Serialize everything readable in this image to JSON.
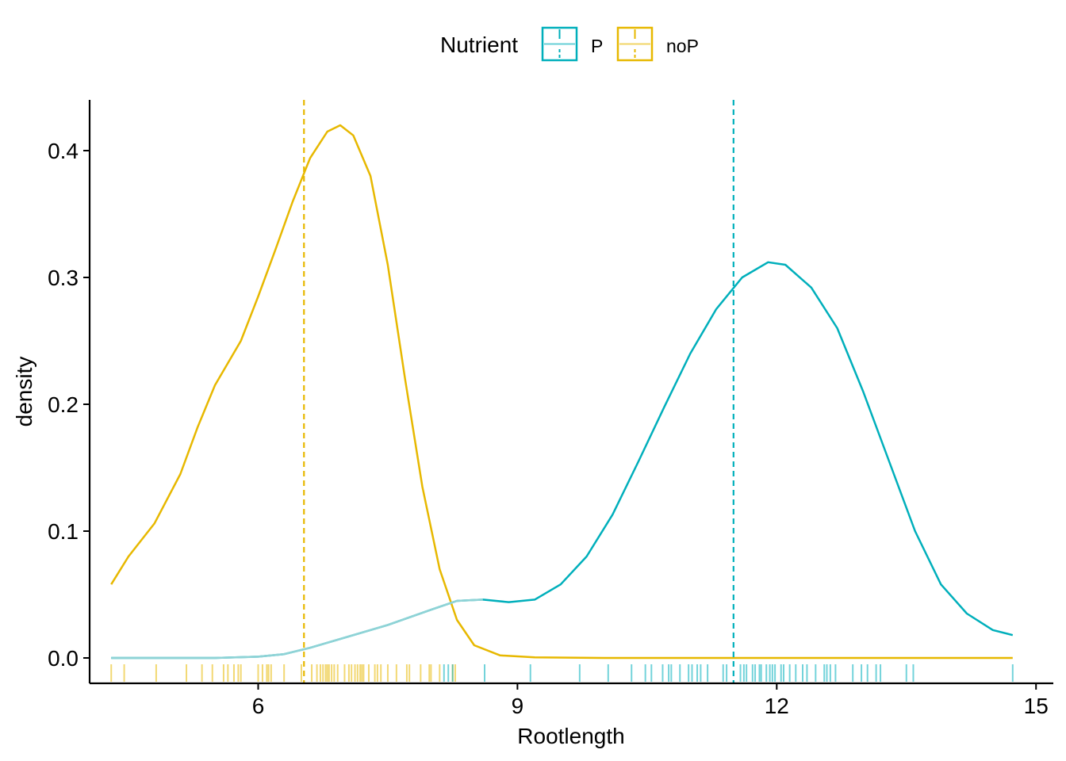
{
  "chart_data": {
    "type": "area",
    "xlabel": "Rootlength",
    "ylabel": "density",
    "xlim": [
      4.05,
      15.2
    ],
    "ylim": [
      -0.02,
      0.44
    ],
    "x_ticks": [
      6,
      9,
      12,
      15
    ],
    "y_ticks": [
      0.0,
      0.1,
      0.2,
      0.3,
      0.4
    ],
    "x_tick_labels": [
      "6",
      "9",
      "12",
      "15"
    ],
    "y_tick_labels": [
      "0.0",
      "0.1",
      "0.2",
      "0.3",
      "0.4"
    ],
    "grid": false,
    "legend": {
      "title": "Nutrient",
      "placement": "top",
      "entries": [
        "P",
        "noP"
      ]
    },
    "series": [
      {
        "name": "noP",
        "color": "#E7B800",
        "mean": 6.53,
        "density": [
          [
            4.3,
            0.058
          ],
          [
            4.5,
            0.08
          ],
          [
            4.8,
            0.106
          ],
          [
            5.1,
            0.145
          ],
          [
            5.3,
            0.182
          ],
          [
            5.5,
            0.215
          ],
          [
            5.8,
            0.25
          ],
          [
            6.0,
            0.285
          ],
          [
            6.2,
            0.322
          ],
          [
            6.4,
            0.36
          ],
          [
            6.6,
            0.394
          ],
          [
            6.8,
            0.415
          ],
          [
            6.95,
            0.42
          ],
          [
            7.1,
            0.412
          ],
          [
            7.3,
            0.38
          ],
          [
            7.5,
            0.31
          ],
          [
            7.7,
            0.22
          ],
          [
            7.9,
            0.135
          ],
          [
            8.1,
            0.07
          ],
          [
            8.3,
            0.03
          ],
          [
            8.5,
            0.01
          ],
          [
            8.8,
            0.002
          ],
          [
            9.2,
            0.0005
          ],
          [
            10.0,
            0.0
          ],
          [
            12.0,
            0.0
          ],
          [
            14.73,
            0.0
          ]
        ],
        "rug": [
          4.3,
          4.45,
          4.82,
          5.17,
          5.35,
          5.47,
          5.6,
          5.65,
          5.72,
          5.77,
          5.8,
          6.0,
          6.05,
          6.1,
          6.12,
          6.15,
          6.3,
          6.5,
          6.62,
          6.68,
          6.72,
          6.75,
          6.78,
          6.8,
          6.82,
          6.85,
          6.88,
          6.92,
          7.0,
          7.05,
          7.08,
          7.12,
          7.15,
          7.18,
          7.2,
          7.22,
          7.28,
          7.35,
          7.38,
          7.42,
          7.5,
          7.6,
          7.72,
          7.75,
          7.88,
          7.98,
          8.0,
          8.1,
          8.25,
          8.28
        ]
      },
      {
        "name": "P",
        "color": "#00AFBB",
        "mean": 11.5,
        "density": [
          [
            4.3,
            0.0
          ],
          [
            5.5,
            0.0
          ],
          [
            6.0,
            0.001
          ],
          [
            6.3,
            0.003
          ],
          [
            6.6,
            0.008
          ],
          [
            7.0,
            0.016
          ],
          [
            7.5,
            0.026
          ],
          [
            8.0,
            0.038
          ],
          [
            8.3,
            0.045
          ],
          [
            8.6,
            0.046
          ],
          [
            8.9,
            0.044
          ],
          [
            9.2,
            0.046
          ],
          [
            9.5,
            0.058
          ],
          [
            9.8,
            0.08
          ],
          [
            10.1,
            0.113
          ],
          [
            10.4,
            0.155
          ],
          [
            10.7,
            0.198
          ],
          [
            11.0,
            0.24
          ],
          [
            11.3,
            0.275
          ],
          [
            11.6,
            0.3
          ],
          [
            11.9,
            0.312
          ],
          [
            12.1,
            0.31
          ],
          [
            12.4,
            0.292
          ],
          [
            12.7,
            0.26
          ],
          [
            13.0,
            0.21
          ],
          [
            13.3,
            0.155
          ],
          [
            13.6,
            0.1
          ],
          [
            13.9,
            0.058
          ],
          [
            14.2,
            0.035
          ],
          [
            14.5,
            0.022
          ],
          [
            14.73,
            0.018
          ]
        ],
        "rug": [
          8.15,
          8.2,
          8.25,
          8.62,
          9.15,
          9.72,
          10.05,
          10.32,
          10.48,
          10.55,
          10.68,
          10.75,
          10.78,
          10.88,
          10.98,
          11.02,
          11.08,
          11.12,
          11.2,
          11.38,
          11.42,
          11.58,
          11.62,
          11.65,
          11.72,
          11.75,
          11.8,
          11.82,
          11.88,
          11.92,
          11.95,
          11.98,
          12.05,
          12.08,
          12.15,
          12.22,
          12.3,
          12.35,
          12.45,
          12.55,
          12.58,
          12.62,
          12.68,
          12.88,
          12.98,
          13.05,
          13.15,
          13.2,
          13.5,
          13.58,
          14.73
        ]
      }
    ]
  }
}
